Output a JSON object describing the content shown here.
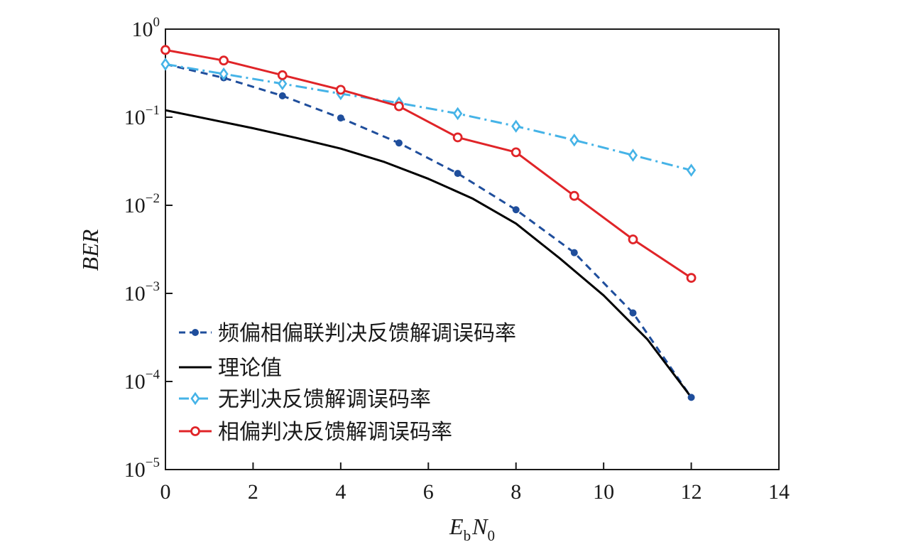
{
  "chart_data": {
    "type": "line",
    "ylabel": "BER",
    "xlabel": {
      "E": "E",
      "b": "b",
      "N": "N",
      "zero": "0"
    },
    "xlim": [
      0,
      14
    ],
    "ylim": [
      1e-05,
      1
    ],
    "y_scale": "log",
    "x_ticks": [
      0,
      2,
      4,
      6,
      8,
      10,
      12,
      14
    ],
    "y_ticks": [
      {
        "value": 1,
        "base": "10",
        "exp": "0"
      },
      {
        "value": 0.1,
        "base": "10",
        "exp": "−1"
      },
      {
        "value": 0.01,
        "base": "10",
        "exp": "−2"
      },
      {
        "value": 0.001,
        "base": "10",
        "exp": "−3"
      },
      {
        "value": 0.0001,
        "base": "10",
        "exp": "−4"
      },
      {
        "value": 1e-05,
        "base": "10",
        "exp": "−5"
      }
    ],
    "legend_position": "lower-left",
    "grid": false,
    "series": [
      {
        "name": "频偏相偏联判决反馈解调误码率",
        "color": "#1f4e9c",
        "line_style": "dashed",
        "marker": "dot",
        "x": [
          0,
          1.33,
          2.67,
          4,
          5.33,
          6.67,
          8,
          9.33,
          10.67,
          12
        ],
        "y": [
          0.4,
          0.28,
          0.175,
          0.098,
          0.051,
          0.023,
          0.0089,
          0.0029,
          0.0006,
          6.6e-05
        ]
      },
      {
        "name": "理论值",
        "color": "#000000",
        "line_style": "solid",
        "marker": "none",
        "x": [
          0,
          1,
          2,
          3,
          4,
          5,
          6,
          7,
          8,
          9,
          10,
          11,
          12
        ],
        "y": [
          0.12,
          0.095,
          0.075,
          0.058,
          0.044,
          0.031,
          0.02,
          0.012,
          0.0062,
          0.0025,
          0.00095,
          0.0003,
          6.6e-05
        ]
      },
      {
        "name": "无判决反馈解调误码率",
        "color": "#45b3e7",
        "line_style": "dashdot",
        "marker": "diamond",
        "x": [
          0,
          1.33,
          2.67,
          4,
          5.33,
          6.67,
          8,
          9.33,
          10.67,
          12
        ],
        "y": [
          0.4,
          0.31,
          0.24,
          0.185,
          0.145,
          0.11,
          0.079,
          0.055,
          0.037,
          0.025
        ]
      },
      {
        "name": "相偏判决反馈解调误码率",
        "color": "#e02428",
        "line_style": "solid",
        "marker": "circle",
        "x": [
          0,
          1.33,
          2.67,
          4,
          5.33,
          6.67,
          8,
          9.33,
          10.67,
          12
        ],
        "y": [
          0.58,
          0.44,
          0.3,
          0.205,
          0.133,
          0.059,
          0.04,
          0.0128,
          0.0041,
          0.0015
        ]
      }
    ]
  }
}
